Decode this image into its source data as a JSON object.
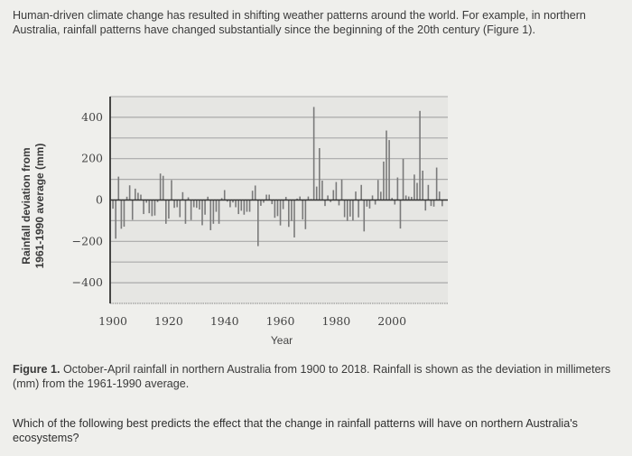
{
  "intro_text": "Human-driven climate change has resulted in shifting weather patterns around the world. For example, in northern Australia, rainfall patterns have changed substantially since the beginning of the 20th century (Figure 1).",
  "caption": {
    "label": "Figure 1.",
    "text": " October-April rainfall in northern Australia from 1900 to 2018. Rainfall is shown as the deviation in millimeters (mm) from the 1961-1990 average."
  },
  "question": "Which of the following best predicts the effect that the change in rainfall patterns will have on northern Australia's ecosystems?",
  "colors": {
    "bar": "#7a7a7a",
    "grid": "#a9a9a9",
    "plot_bg": "#e6e6e3",
    "axis": "#333333"
  },
  "chart_data": {
    "type": "bar",
    "title": "",
    "xlabel": "Year",
    "ylabel": [
      "Rainfall deviation from",
      "1961-1990 average (mm)"
    ],
    "x_start": 1900,
    "x_end": 2018,
    "xlim": [
      1899,
      2020
    ],
    "ylim": [
      -500,
      500
    ],
    "xticks": [
      "1900",
      "1920",
      "1940",
      "1960",
      "1980",
      "2000"
    ],
    "yticks": [
      "400",
      "200",
      "0",
      "−200",
      "−400"
    ],
    "ytick_values": [
      400,
      200,
      0,
      -200,
      -400
    ],
    "grid_step": 100,
    "grid": true,
    "values": [
      -42,
      -187,
      113,
      -139,
      -129,
      16,
      71,
      -96,
      55,
      35,
      26,
      -68,
      -13,
      -64,
      -78,
      -75,
      -10,
      128,
      117,
      -115,
      -90,
      96,
      -38,
      -35,
      -83,
      38,
      -115,
      13,
      -97,
      -35,
      -38,
      -46,
      -122,
      -71,
      16,
      -146,
      -115,
      -57,
      -115,
      9,
      48,
      -8,
      -35,
      -12,
      -35,
      -68,
      -52,
      -71,
      -57,
      -57,
      45,
      70,
      -223,
      -28,
      -13,
      26,
      26,
      -20,
      -86,
      -78,
      -123,
      -44,
      15,
      -130,
      -101,
      -181,
      7,
      17,
      -94,
      -141,
      17,
      5,
      450,
      65,
      251,
      94,
      -29,
      22,
      -10,
      48,
      87,
      -26,
      99,
      -83,
      -101,
      -80,
      -99,
      41,
      -84,
      73,
      -152,
      -32,
      -41,
      22,
      -22,
      97,
      40,
      186,
      336,
      290,
      10,
      -22,
      109,
      -138,
      199,
      22,
      17,
      15,
      123,
      83,
      431,
      142,
      -51,
      73,
      -29,
      -32,
      157,
      41,
      -30
    ]
  }
}
